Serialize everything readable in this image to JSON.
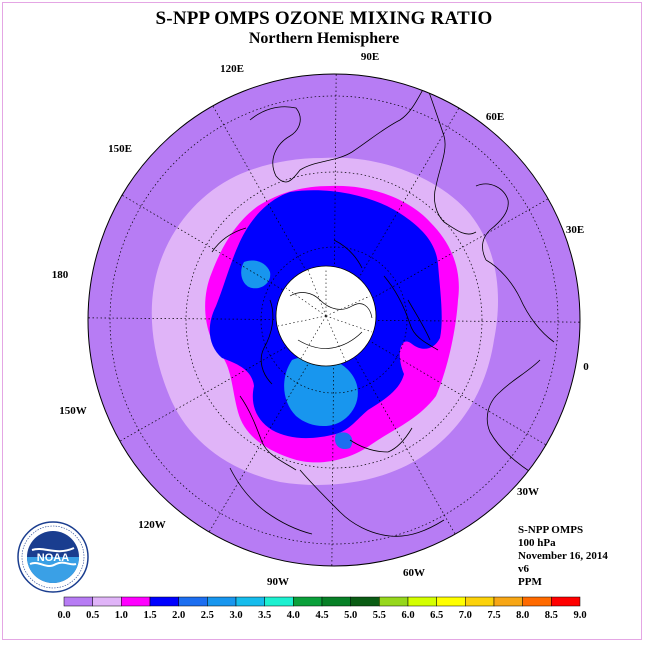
{
  "header": {
    "title": "S-NPP OMPS OZONE MIXING RATIO",
    "subtitle": "Northern Hemisphere"
  },
  "map": {
    "projection": "north-polar-stereographic",
    "longitude_labels": [
      "90E",
      "60E",
      "30E",
      "0",
      "30W",
      "60W",
      "90W",
      "120W",
      "150W",
      "180",
      "150E",
      "120E"
    ],
    "missing_data_color": "#ffffff",
    "regions_ppm": [
      {
        "region": "outer-ring",
        "level": "0.0-0.5"
      },
      {
        "region": "middle-ring",
        "level": "0.5-1.0"
      },
      {
        "region": "vortex-edge",
        "level": "1.0-1.5"
      },
      {
        "region": "vortex",
        "level": "1.5-2.0"
      },
      {
        "region": "vortex-core",
        "level": "2.5-3.0"
      }
    ]
  },
  "info": {
    "instrument": "S-NPP OMPS",
    "pressure": "100 hPa",
    "date": "November 16, 2014",
    "version": "v6",
    "units": "PPM"
  },
  "colorbar": {
    "ticks": [
      "0.0",
      "0.5",
      "1.0",
      "1.5",
      "2.0",
      "2.5",
      "3.0",
      "3.5",
      "4.0",
      "4.5",
      "5.0",
      "5.5",
      "6.0",
      "6.5",
      "7.0",
      "7.5",
      "8.0",
      "8.5",
      "9.0"
    ],
    "colors": [
      "#b77cf4",
      "#e0b4f8",
      "#ff00ff",
      "#0000ff",
      "#1c6ef0",
      "#1896ee",
      "#16bcec",
      "#1cf0d0",
      "#0aa03a",
      "#078026",
      "#0a5c14",
      "#96d71c",
      "#d4ff00",
      "#ffff00",
      "#fcd20a",
      "#f7a615",
      "#ff6a00",
      "#ff0000",
      "#7a5030"
    ]
  },
  "logo": {
    "text": "NOAA",
    "ring_text": "NATIONAL OCEANIC AND ATMOSPHERIC ADMINISTRATION · U.S. DEPARTMENT OF COMMERCE"
  }
}
